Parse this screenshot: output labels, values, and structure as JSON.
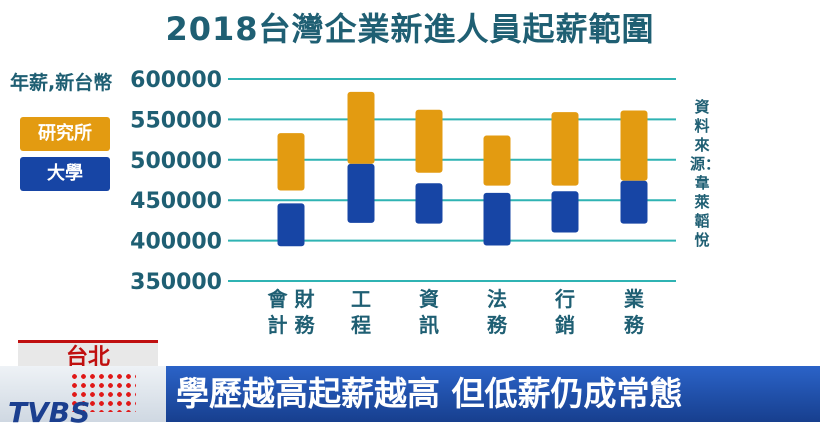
{
  "title": "2018台灣企業新進人員起薪範圍",
  "y_axis_label": "年薪,新台幣",
  "legend": [
    {
      "label": "研究所",
      "color": "#e39b11"
    },
    {
      "label": "大學",
      "color": "#1745a5"
    }
  ],
  "source": "資料來源：韋萊韜悅",
  "news": {
    "city": "台北",
    "headline": "學歷越高起薪越高 但低薪仍成常態",
    "logo": "TVBS"
  },
  "chart_data": {
    "type": "bar",
    "subtype": "floating-range",
    "categories": [
      "會財計務",
      "工程",
      "資訊",
      "法務",
      "行銷",
      "業務"
    ],
    "category_lines": [
      [
        "會財",
        "計務"
      ],
      [
        "工",
        "程"
      ],
      [
        "資",
        "訊"
      ],
      [
        "法",
        "務"
      ],
      [
        "行",
        "銷"
      ],
      [
        "業",
        "務"
      ]
    ],
    "yticks": [
      350000,
      400000,
      450000,
      500000,
      550000,
      600000
    ],
    "ylim": [
      350000,
      600000
    ],
    "grid": true,
    "series": [
      {
        "name": "研究所",
        "color": "#e39b11",
        "low": [
          462000,
          495000,
          484000,
          468000,
          468000,
          474000
        ],
        "high": [
          533000,
          584000,
          562000,
          530000,
          559000,
          561000
        ]
      },
      {
        "name": "大學",
        "color": "#1745a5",
        "low": [
          393000,
          422000,
          421000,
          394000,
          410000,
          421000
        ],
        "high": [
          446000,
          495000,
          471000,
          459000,
          461000,
          474000
        ]
      }
    ]
  }
}
